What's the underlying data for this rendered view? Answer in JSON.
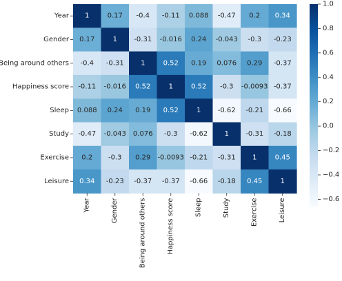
{
  "chart_data": {
    "type": "heatmap",
    "title": "",
    "xlabel": "",
    "ylabel": "",
    "row_labels": [
      "Year",
      "Gender",
      "Being around others",
      "Happiness score",
      "Sleep",
      "Study",
      "Exercise",
      "Leisure"
    ],
    "col_labels": [
      "Year",
      "Gender",
      "Being around others",
      "Happiness score",
      "Sleep",
      "Study",
      "Exercise",
      "Leisure"
    ],
    "values": [
      [
        1,
        0.17,
        -0.4,
        -0.11,
        0.088,
        -0.47,
        0.2,
        0.34
      ],
      [
        0.17,
        1,
        -0.31,
        -0.016,
        0.24,
        -0.043,
        -0.3,
        -0.23
      ],
      [
        -0.4,
        -0.31,
        1,
        0.52,
        0.19,
        0.076,
        0.29,
        -0.37
      ],
      [
        -0.11,
        -0.016,
        0.52,
        1,
        0.52,
        -0.3,
        -0.0093,
        -0.37
      ],
      [
        0.088,
        0.24,
        0.19,
        0.52,
        1,
        -0.62,
        -0.21,
        -0.66
      ],
      [
        -0.47,
        -0.043,
        0.076,
        -0.3,
        -0.62,
        1,
        -0.31,
        -0.18
      ],
      [
        0.2,
        -0.3,
        0.29,
        -0.0093,
        -0.21,
        -0.31,
        1,
        0.45
      ],
      [
        0.34,
        -0.23,
        -0.37,
        -0.37,
        -0.66,
        -0.18,
        0.45,
        1
      ]
    ],
    "value_labels": [
      [
        "1",
        "0.17",
        "-0.4",
        "-0.11",
        "0.088",
        "-0.47",
        "0.2",
        "0.34"
      ],
      [
        "0.17",
        "1",
        "-0.31",
        "-0.016",
        "0.24",
        "-0.043",
        "-0.3",
        "-0.23"
      ],
      [
        "-0.4",
        "-0.31",
        "1",
        "0.52",
        "0.19",
        "0.076",
        "0.29",
        "-0.37"
      ],
      [
        "-0.11",
        "-0.016",
        "0.52",
        "1",
        "0.52",
        "-0.3",
        "-0.0093",
        "-0.37"
      ],
      [
        "0.088",
        "0.24",
        "0.19",
        "0.52",
        "1",
        "-0.62",
        "-0.21",
        "-0.66"
      ],
      [
        "-0.47",
        "-0.043",
        "0.076",
        "-0.3",
        "-0.62",
        "1",
        "-0.31",
        "-0.18"
      ],
      [
        "0.2",
        "-0.3",
        "0.29",
        "-0.0093",
        "-0.21",
        "-0.31",
        "1",
        "0.45"
      ],
      [
        "0.34",
        "-0.23",
        "-0.37",
        "-0.37",
        "-0.66",
        "-0.18",
        "0.45",
        "1"
      ]
    ],
    "colormap": "Blues",
    "colormap_stops": [
      "#f7fbff",
      "#deebf7",
      "#c6dbef",
      "#9ecae1",
      "#6baed6",
      "#4292c6",
      "#2171b5",
      "#08519c",
      "#08306b"
    ],
    "value_range": [
      -0.66,
      1.0
    ],
    "colorbar": {
      "position": "right",
      "ticks": [
        -0.6,
        -0.4,
        -0.2,
        0.0,
        0.2,
        0.4,
        0.6,
        0.8,
        1.0
      ],
      "tick_labels": [
        "−0.6",
        "−0.4",
        "−0.2",
        "0.0",
        "0.2",
        "0.4",
        "0.6",
        "0.8",
        "1.0"
      ]
    },
    "grid": false
  }
}
